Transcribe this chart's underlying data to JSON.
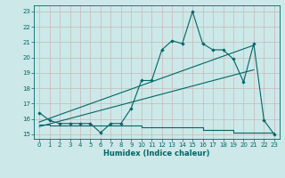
{
  "title": "",
  "xlabel": "Humidex (Indice chaleur)",
  "ylabel": "",
  "bg_color": "#cce8e8",
  "grid_color": "#c8b8b8",
  "line_color": "#006666",
  "xlim": [
    -0.5,
    23.5
  ],
  "ylim": [
    14.7,
    23.4
  ],
  "xticks": [
    0,
    1,
    2,
    3,
    4,
    5,
    6,
    7,
    8,
    9,
    10,
    11,
    12,
    13,
    14,
    15,
    16,
    17,
    18,
    19,
    20,
    21,
    22,
    23
  ],
  "yticks": [
    15,
    16,
    17,
    18,
    19,
    20,
    21,
    22,
    23
  ],
  "main_x": [
    0,
    1,
    2,
    3,
    4,
    5,
    6,
    7,
    8,
    9,
    10,
    11,
    12,
    13,
    14,
    15,
    16,
    17,
    18,
    19,
    20,
    21,
    22,
    23
  ],
  "main_y": [
    16.4,
    15.9,
    15.7,
    15.7,
    15.7,
    15.7,
    15.1,
    15.7,
    15.7,
    16.7,
    18.5,
    18.5,
    20.5,
    21.1,
    20.9,
    23.0,
    20.9,
    20.5,
    20.5,
    19.9,
    18.4,
    20.9,
    15.9,
    15.0
  ],
  "trend1_x": [
    0,
    21
  ],
  "trend1_y": [
    15.8,
    20.8
  ],
  "trend2_x": [
    0,
    21
  ],
  "trend2_y": [
    15.5,
    19.2
  ],
  "step_x": [
    0,
    1,
    2,
    3,
    4,
    5,
    6,
    7,
    8,
    9,
    10,
    11,
    12,
    13,
    14,
    15,
    16,
    17,
    18,
    19,
    20,
    21,
    22,
    23
  ],
  "step_y": [
    15.65,
    15.55,
    15.55,
    15.55,
    15.55,
    15.55,
    15.55,
    15.55,
    15.55,
    15.55,
    15.45,
    15.45,
    15.45,
    15.45,
    15.45,
    15.45,
    15.3,
    15.3,
    15.3,
    15.1,
    15.1,
    15.1,
    15.1,
    15.0
  ]
}
